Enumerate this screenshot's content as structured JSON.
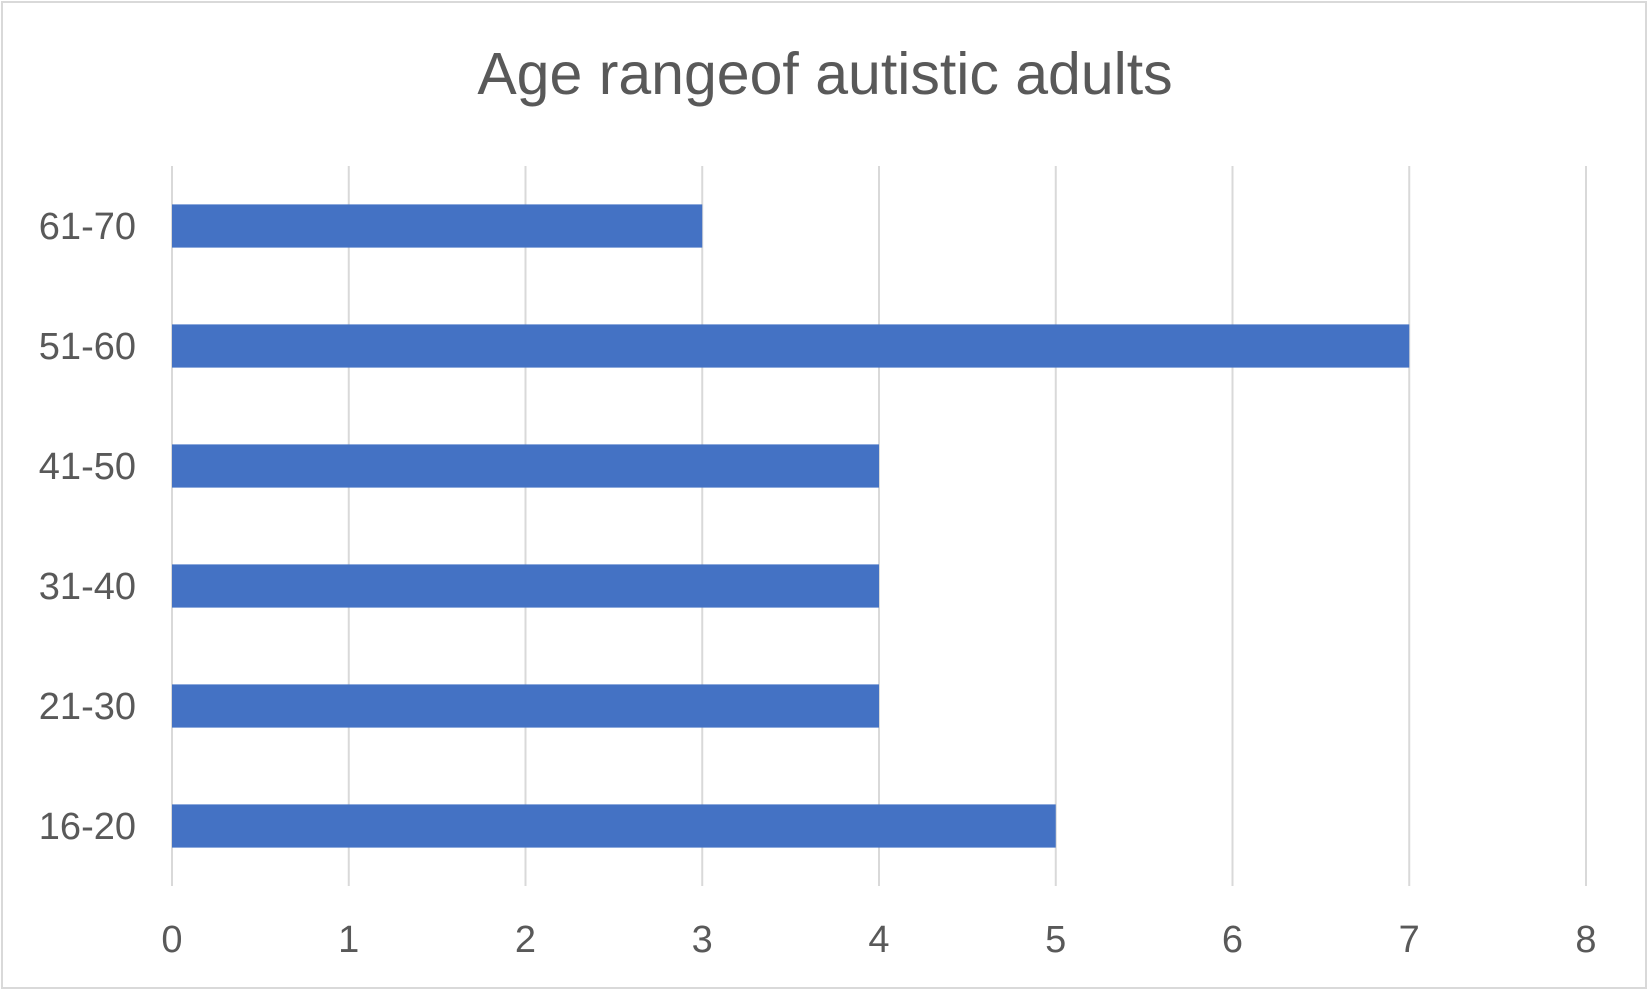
{
  "chart_data": {
    "type": "bar",
    "orientation": "horizontal",
    "title": "Age rangeof autistic adults",
    "xlabel": "",
    "ylabel": "",
    "categories": [
      "16-20",
      "21-30",
      "31-40",
      "41-50",
      "51-60",
      "61-70"
    ],
    "values": [
      5,
      4,
      4,
      4,
      7,
      3
    ],
    "xlim": [
      0,
      8
    ],
    "x_ticks": [
      "0",
      "1",
      "2",
      "3",
      "4",
      "5",
      "6",
      "7",
      "8"
    ],
    "grid": "vertical",
    "legend": "none",
    "colors": {
      "bar": "#4472c4",
      "grid": "#d9d9d9",
      "text": "#595959",
      "border": "#d9d9d9"
    }
  }
}
